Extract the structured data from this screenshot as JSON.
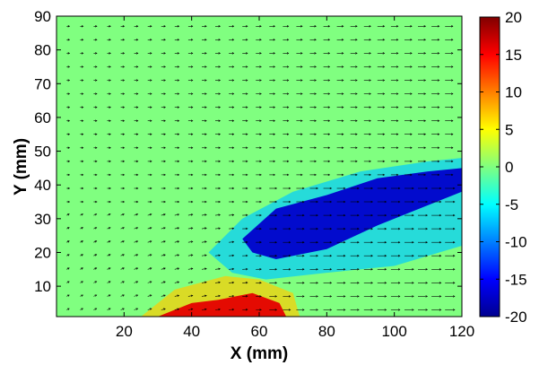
{
  "chart_data": {
    "type": "heatmap",
    "title": "",
    "xlabel": "X (mm)",
    "ylabel": "Y (mm)",
    "xlim": [
      0,
      120
    ],
    "ylim": [
      1,
      90
    ],
    "xticks": [
      20,
      40,
      60,
      80,
      100,
      120
    ],
    "yticks": [
      10,
      20,
      30,
      40,
      50,
      60,
      70,
      80,
      90
    ],
    "colorbar": {
      "colormap": "jet",
      "range": [
        -20,
        20
      ],
      "ticks": [
        20,
        15,
        10,
        5,
        0,
        -5,
        -10,
        -15,
        -20
      ]
    },
    "background_value": 0,
    "vector_field": {
      "present": true,
      "dominant_direction": "positive x (left to right)",
      "lower_left_region_direction": "up and to the right",
      "arrow_color": "#000000"
    },
    "features": [
      {
        "name": "negative vorticity band",
        "approx_value": -17,
        "outline_points": [
          [
            55,
            24
          ],
          [
            65,
            33
          ],
          [
            80,
            37
          ],
          [
            95,
            42
          ],
          [
            110,
            44
          ],
          [
            120,
            45
          ],
          [
            120,
            38
          ],
          [
            110,
            34
          ],
          [
            95,
            28
          ],
          [
            80,
            21
          ],
          [
            65,
            18
          ],
          [
            58,
            20
          ]
        ]
      },
      {
        "name": "weak negative halo",
        "approx_value": -7,
        "outline_points": [
          [
            45,
            20
          ],
          [
            55,
            30
          ],
          [
            70,
            38
          ],
          [
            90,
            44
          ],
          [
            110,
            47
          ],
          [
            120,
            48
          ],
          [
            120,
            22
          ],
          [
            100,
            16
          ],
          [
            80,
            14
          ],
          [
            62,
            12
          ],
          [
            52,
            14
          ]
        ]
      },
      {
        "name": "positive patch near bottom",
        "approx_value": 16,
        "outline_points": [
          [
            30,
            1
          ],
          [
            40,
            5
          ],
          [
            48,
            6
          ],
          [
            58,
            8
          ],
          [
            66,
            5
          ],
          [
            68,
            1
          ]
        ]
      },
      {
        "name": "weak positive near bottom",
        "approx_value": 7,
        "outline_points": [
          [
            25,
            1
          ],
          [
            35,
            9
          ],
          [
            50,
            13
          ],
          [
            60,
            12
          ],
          [
            70,
            8
          ],
          [
            72,
            1
          ]
        ]
      }
    ]
  }
}
